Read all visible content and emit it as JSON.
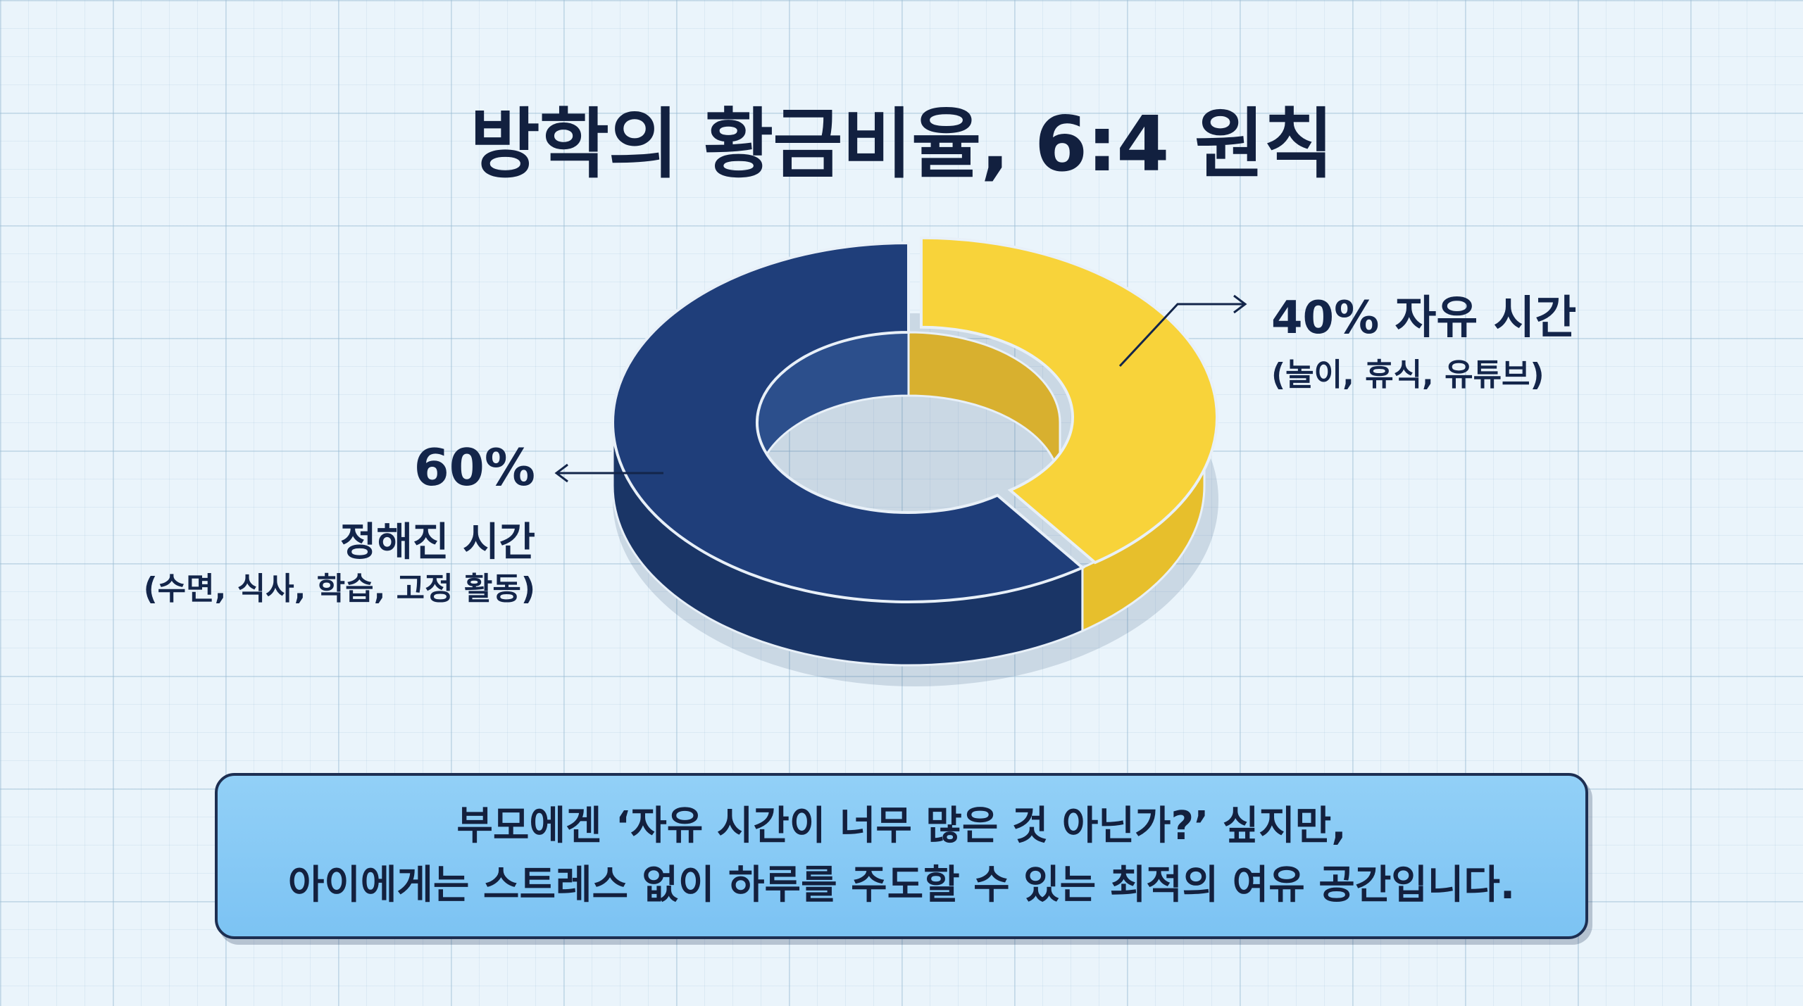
{
  "title": "방학의 황금비율, 6:4 원칙",
  "chart_data": {
    "type": "pie",
    "donut": true,
    "slices": [
      {
        "label": "자유 시간",
        "value": 40,
        "value_label": "40%",
        "detail": "(놀이, 휴식, 유튜브)",
        "color": "#f8d33a"
      },
      {
        "label": "정해진 시간",
        "value": 60,
        "value_label": "60%",
        "detail": "(수면, 식사, 학습, 고정 활동)",
        "color": "#1f3e7a"
      }
    ]
  },
  "labels": {
    "free_main": "40% 자유 시간",
    "free_sub": "(놀이, 휴식, 유튜브)",
    "fixed_pct": "60%",
    "fixed_main": "정해진 시간",
    "fixed_sub": "(수면, 식사, 학습, 고정 활동)"
  },
  "note": {
    "line1": "부모에겐 ‘자유 시간이 너무 많은 것 아닌가?’ 싶지만,",
    "line2": "아이에게는 스트레스 없이 하루를 주도할 수 있는 최적의 여유 공간입니다."
  },
  "colors": {
    "free_top": "#f8d33a",
    "free_side": "#e7bf2c",
    "free_inner": "#d8b02f",
    "fixed_top": "#1f3e7a",
    "fixed_side": "#1a3566",
    "fixed_inner": "#2c4f8c",
    "arrow": "#13254a"
  }
}
